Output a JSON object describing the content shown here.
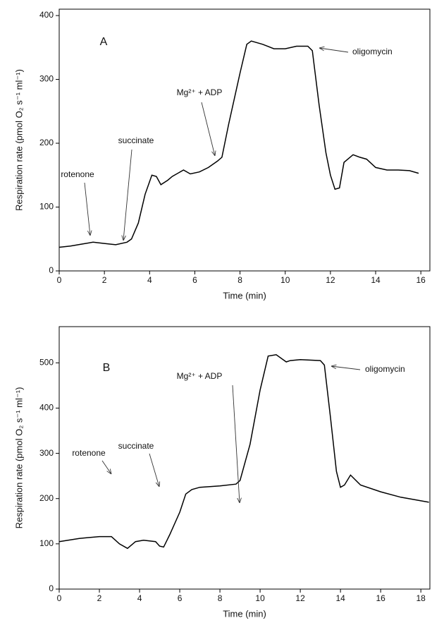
{
  "chart_data": [
    {
      "type": "line",
      "panel": "A",
      "ylabel": "Respiration rate (pmol O₂ s⁻¹ ml⁻¹)",
      "xlabel": "Time (min)",
      "annotations": [
        "rotenone",
        "succinate",
        "Mg²⁺ + ADP",
        "oligomycin"
      ],
      "xlim": [
        0,
        16.4
      ],
      "xticks": [
        0,
        2,
        4,
        6,
        8,
        10,
        12,
        14,
        16
      ],
      "ylim": [
        0,
        410
      ],
      "yticks": [
        0,
        100,
        200,
        300,
        400
      ],
      "color": "#000000",
      "x": [
        0,
        0.5,
        1,
        1.5,
        2,
        2.5,
        3,
        3.2,
        3.5,
        3.8,
        4.1,
        4.3,
        4.5,
        4.8,
        5,
        5.5,
        5.8,
        6.2,
        6.6,
        7,
        7.2,
        7.5,
        8,
        8.3,
        8.5,
        9,
        9.5,
        10,
        10.5,
        11,
        11.2,
        11.5,
        11.8,
        12,
        12.2,
        12.4,
        12.6,
        13,
        13.3,
        13.6,
        14,
        14.5,
        15,
        15.5,
        15.9
      ],
      "values": [
        37,
        39,
        42,
        45,
        43,
        41,
        45,
        50,
        75,
        120,
        150,
        148,
        135,
        142,
        148,
        158,
        152,
        155,
        162,
        172,
        178,
        230,
        310,
        355,
        360,
        355,
        348,
        348,
        352,
        352,
        345,
        260,
        185,
        150,
        128,
        130,
        170,
        182,
        178,
        175,
        162,
        158,
        158,
        157,
        153
      ]
    },
    {
      "type": "line",
      "panel": "B",
      "ylabel": "Respiration rate (pmol O₂ s⁻¹ ml⁻¹)",
      "xlabel": "Time (min)",
      "annotations": [
        "rotenone",
        "succinate",
        "Mg²⁺ + ADP",
        "oligomycin"
      ],
      "xlim": [
        0,
        18.45
      ],
      "xticks": [
        0,
        2,
        4,
        6,
        8,
        10,
        12,
        14,
        16,
        18
      ],
      "ylim": [
        0,
        580
      ],
      "yticks": [
        0,
        100,
        200,
        300,
        400,
        500
      ],
      "color": "#000000",
      "x": [
        0,
        1,
        2,
        2.6,
        3,
        3.4,
        3.8,
        4.2,
        4.8,
        5,
        5.2,
        5.5,
        6,
        6.3,
        6.6,
        7,
        8,
        8.8,
        9,
        9.5,
        10,
        10.4,
        10.8,
        11.3,
        11.5,
        12,
        13,
        13.2,
        13.5,
        13.8,
        14,
        14.2,
        14.5,
        15,
        16,
        17,
        18.4
      ],
      "values": [
        105,
        112,
        116,
        116,
        100,
        90,
        105,
        108,
        105,
        95,
        93,
        120,
        170,
        210,
        220,
        225,
        228,
        232,
        240,
        320,
        440,
        515,
        518,
        502,
        505,
        507,
        505,
        495,
        380,
        260,
        225,
        230,
        252,
        230,
        215,
        203,
        192
      ]
    }
  ]
}
